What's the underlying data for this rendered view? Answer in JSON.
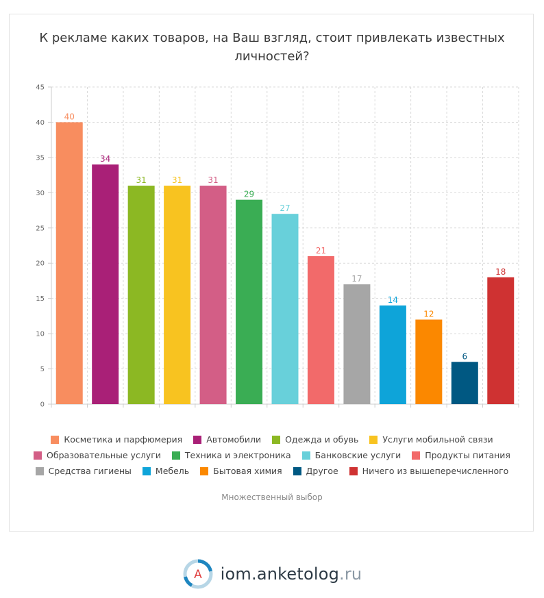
{
  "title": "К рекламе каких товаров, на Ваш взгляд, стоит привлекать известных личностей?",
  "subtitle": "Множественный выбор",
  "brand": {
    "main": "iom.anketolog",
    "tld": ".ru",
    "logo_letter": "A",
    "logo_icon": "anketolog-logo-icon"
  },
  "chart_data": {
    "type": "bar",
    "title": "К рекламе каких товаров, на Ваш взгляд, стоит привлекать известных личностей?",
    "ylim": [
      0,
      45
    ],
    "yticks": [
      0,
      5,
      10,
      15,
      20,
      25,
      30,
      35,
      40,
      45
    ],
    "grid": true,
    "legend_position": "bottom",
    "categories": [
      "Косметика и парфюмерия",
      "Автомобили",
      "Одежда и обувь",
      "Услуги мобильной связи",
      "Образовательные услуги",
      "Техника и электроника",
      "Банковские услуги",
      "Продукты питания",
      "Средства гигиены",
      "Мебель",
      "Бытовая химия",
      "Другое",
      "Ничего из вышеперечисленного"
    ],
    "values": [
      40,
      34,
      31,
      31,
      31,
      29,
      27,
      21,
      17,
      14,
      12,
      6,
      18
    ],
    "value_labels": [
      "40",
      "34",
      "31",
      "31",
      "31",
      "29",
      "27",
      "21",
      "17",
      "14",
      "12",
      "6",
      "18"
    ],
    "colors": [
      "#f88d5f",
      "#a92077",
      "#8cb823",
      "#f8c320",
      "#d35e86",
      "#3aad54",
      "#68d0da",
      "#f26a6a",
      "#a6a6a6",
      "#0ea4d9",
      "#fb8800",
      "#005882",
      "#cf3232"
    ],
    "legend_rows": [
      [
        0,
        1,
        2,
        3
      ],
      [
        4,
        5,
        6,
        7
      ],
      [
        8,
        9,
        10,
        11,
        12
      ]
    ]
  }
}
